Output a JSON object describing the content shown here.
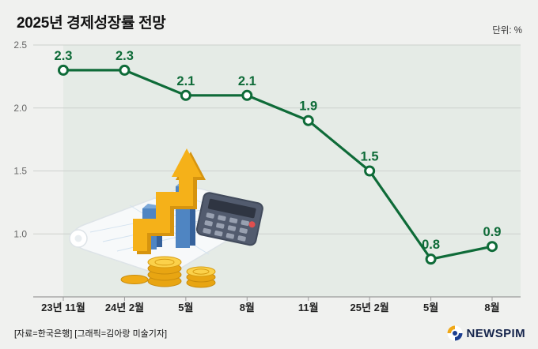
{
  "header": {
    "title": "2025년 경제성장률 전망",
    "unit": "단위: %"
  },
  "footer": {
    "credits": "[자료=한국은행] [그래픽=김아랑 미술기자]",
    "brand": "NEWSPIM"
  },
  "chart_data": {
    "type": "line",
    "title": "2025년 경제성장률 전망",
    "categories": [
      "23년 11월",
      "24년 2월",
      "5월",
      "8월",
      "11월",
      "25년 2월",
      "5월",
      "8월"
    ],
    "values": [
      2.3,
      2.3,
      2.1,
      2.1,
      1.9,
      1.5,
      0.8,
      0.9
    ],
    "ylabel": "%",
    "ylim": [
      0.5,
      2.5
    ],
    "yticks": [
      2.5,
      2.0,
      1.5,
      1.0
    ],
    "grid": true,
    "legend": "none",
    "line_color": "#0e6b38",
    "band_color": "#e5ebe6",
    "grid_color": "#cdd1ce",
    "axis_color": "#9b9b9b"
  }
}
